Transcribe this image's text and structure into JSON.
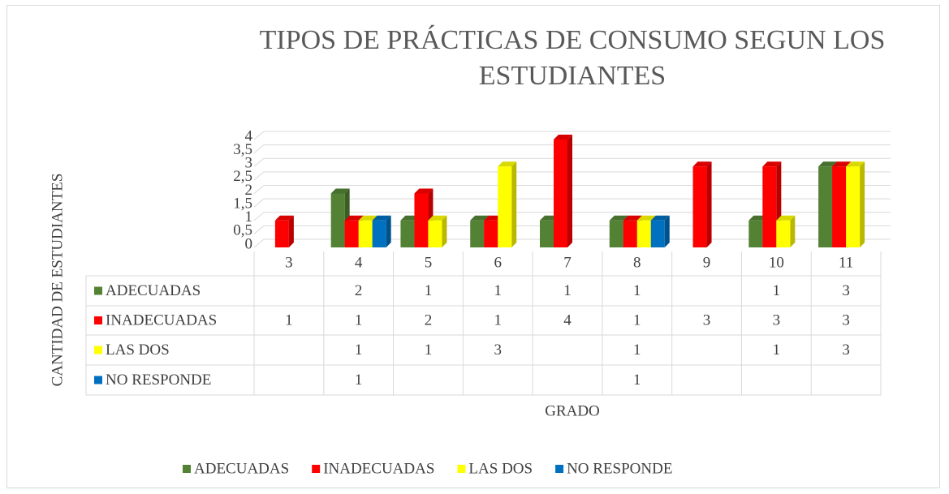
{
  "chart_data": {
    "type": "bar3d",
    "title": "TIPOS DE PRÁCTICAS DE CONSUMO SEGUN LOS ESTUDIANTES",
    "y_label": "CANTIDAD DE ESTUDIANTES",
    "x_label": "GRADO",
    "categories": [
      "3",
      "4",
      "5",
      "6",
      "7",
      "8",
      "9",
      "10",
      "11"
    ],
    "series": [
      {
        "name": "ADECUADAS",
        "color": "#548235",
        "values": [
          null,
          2,
          1,
          1,
          1,
          1,
          null,
          1,
          3
        ]
      },
      {
        "name": "INADECUADAS",
        "color": "#ff0000",
        "values": [
          1,
          1,
          2,
          1,
          4,
          1,
          3,
          3,
          3
        ]
      },
      {
        "name": "LAS DOS",
        "color": "#ffff00",
        "values": [
          null,
          1,
          1,
          3,
          null,
          1,
          null,
          1,
          3
        ]
      },
      {
        "name": "NO RESPONDE",
        "color": "#0070c0",
        "values": [
          null,
          1,
          null,
          null,
          null,
          1,
          null,
          null,
          null
        ]
      }
    ],
    "ylim": [
      0,
      4
    ],
    "yticks": [
      0,
      {
        "value": 0.5,
        "label": "0,5"
      },
      1,
      {
        "value": 1.5,
        "label": "1,5"
      },
      2,
      {
        "value": 2.5,
        "label": "2,5"
      },
      3,
      {
        "value": 3.5,
        "label": "3,5"
      },
      4
    ],
    "grid": true,
    "legend": "bottom"
  }
}
